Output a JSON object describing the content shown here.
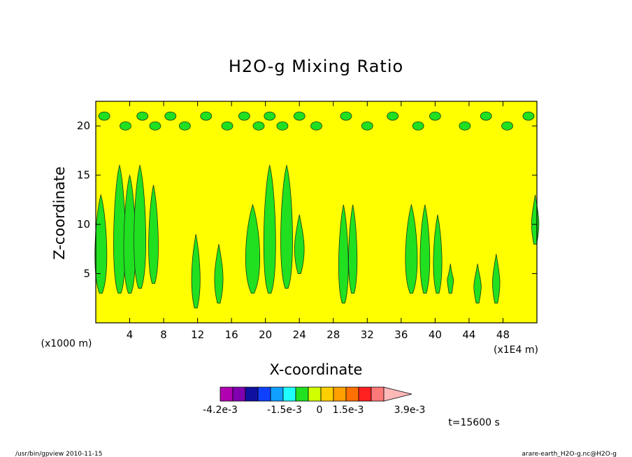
{
  "chart_data": {
    "type": "heatmap",
    "title": "H2O-g Mixing Ratio",
    "xlabel": "X-coordinate",
    "ylabel": "Z-coordinate",
    "x_units_left": "(x1000 m)",
    "x_units_right": "(x1E4 m)",
    "xlim": [
      0,
      52
    ],
    "ylim": [
      0,
      22.5
    ],
    "x_ticks": [
      4,
      8,
      12,
      16,
      20,
      24,
      28,
      32,
      36,
      40,
      44,
      48
    ],
    "y_ticks": [
      5,
      10,
      15,
      20
    ],
    "background_color": "#ffff00",
    "colorbar": {
      "colors": [
        "#b000b0",
        "#8000b0",
        "#1010a0",
        "#1040ff",
        "#10a0ff",
        "#20ffff",
        "#20e020",
        "#d0ff00",
        "#ffd000",
        "#ffa000",
        "#ff7000",
        "#ff2020",
        "#ff7878",
        "#ffb8b8"
      ],
      "tick_labels": [
        "-4.2e-3",
        "-1.5e-3",
        "0",
        "1.5e-3",
        "3.9e-3"
      ]
    },
    "time_label": "t=15600 s",
    "plumes": [
      {
        "x": 0.6,
        "base": 3,
        "top": 13,
        "w": 0.5,
        "color": "#20e020"
      },
      {
        "x": 2.8,
        "base": 3,
        "top": 16,
        "w": 0.5,
        "color": "#20e020"
      },
      {
        "x": 4.0,
        "base": 3,
        "top": 15,
        "w": 0.5,
        "color": "#20e020"
      },
      {
        "x": 5.2,
        "base": 3.5,
        "top": 16,
        "w": 0.5,
        "color": "#20e020"
      },
      {
        "x": 6.8,
        "base": 4,
        "top": 14,
        "w": 0.4,
        "color": "#20e020"
      },
      {
        "x": 11.8,
        "base": 1.5,
        "top": 9,
        "w": 0.35,
        "color": "#20e020"
      },
      {
        "x": 14.5,
        "base": 2,
        "top": 8,
        "w": 0.35,
        "color": "#20e020"
      },
      {
        "x": 18.5,
        "base": 3,
        "top": 12,
        "w": 0.6,
        "color": "#20e020"
      },
      {
        "x": 20.5,
        "base": 3,
        "top": 16,
        "w": 0.5,
        "color": "#20e020"
      },
      {
        "x": 22.5,
        "base": 3.5,
        "top": 16,
        "w": 0.5,
        "color": "#20e020"
      },
      {
        "x": 24.0,
        "base": 5,
        "top": 11,
        "w": 0.4,
        "color": "#20e020"
      },
      {
        "x": 29.2,
        "base": 2,
        "top": 12,
        "w": 0.4,
        "color": "#20e020"
      },
      {
        "x": 30.3,
        "base": 3,
        "top": 12,
        "w": 0.35,
        "color": "#20e020"
      },
      {
        "x": 37.2,
        "base": 3,
        "top": 12,
        "w": 0.5,
        "color": "#20e020"
      },
      {
        "x": 38.8,
        "base": 3,
        "top": 12,
        "w": 0.4,
        "color": "#20e020"
      },
      {
        "x": 40.3,
        "base": 3,
        "top": 11,
        "w": 0.35,
        "color": "#20e020"
      },
      {
        "x": 41.8,
        "base": 3,
        "top": 6,
        "w": 0.25,
        "color": "#20e020"
      },
      {
        "x": 45.0,
        "base": 2,
        "top": 6,
        "w": 0.3,
        "color": "#20e020"
      },
      {
        "x": 47.2,
        "base": 2,
        "top": 7,
        "w": 0.3,
        "color": "#20e020"
      },
      {
        "x": 51.8,
        "base": 8,
        "top": 13,
        "w": 0.3,
        "color": "#20e020"
      }
    ],
    "upper_blobs_x": [
      1,
      3.5,
      5.5,
      7,
      8.8,
      10.5,
      13,
      15.5,
      17.5,
      19.2,
      20.5,
      22,
      24,
      26,
      29.5,
      32,
      35,
      38,
      40,
      43.5,
      46,
      48.5,
      51
    ]
  },
  "footer": {
    "left": "/usr/bin/gpview   2010-11-15",
    "right": "arare-earth_H2O-g.nc@H2O-g"
  }
}
